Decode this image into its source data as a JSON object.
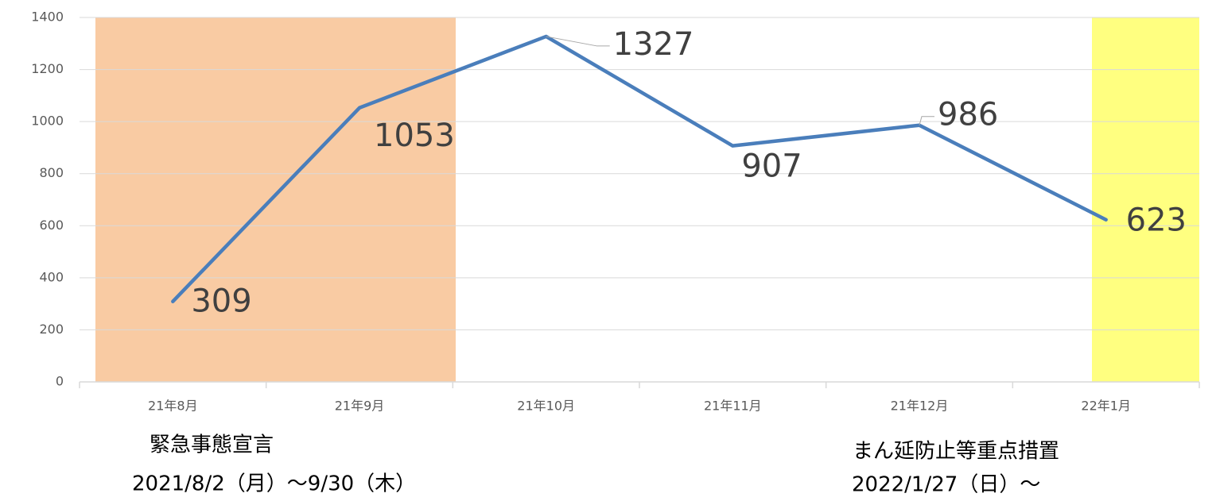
{
  "chart_data": {
    "type": "line",
    "categories": [
      "21年8月",
      "21年9月",
      "21年10月",
      "21年11月",
      "21年12月",
      "22年1月"
    ],
    "values": [
      309,
      1053,
      1327,
      907,
      986,
      623
    ],
    "color": "#4a7ebb",
    "ylim": [
      0,
      1400
    ],
    "yticks": [
      0,
      200,
      400,
      600,
      800,
      1000,
      1200,
      1400
    ],
    "grid": true,
    "annotations": [
      {
        "title": "緊急事態宣言",
        "period": "2021/8/2（月）～9/30（木）",
        "color": "#f9cba3"
      },
      {
        "title": "まん延防止等重点措置",
        "period": "2022/1/27（日）～",
        "color": "#ffff80"
      }
    ]
  }
}
